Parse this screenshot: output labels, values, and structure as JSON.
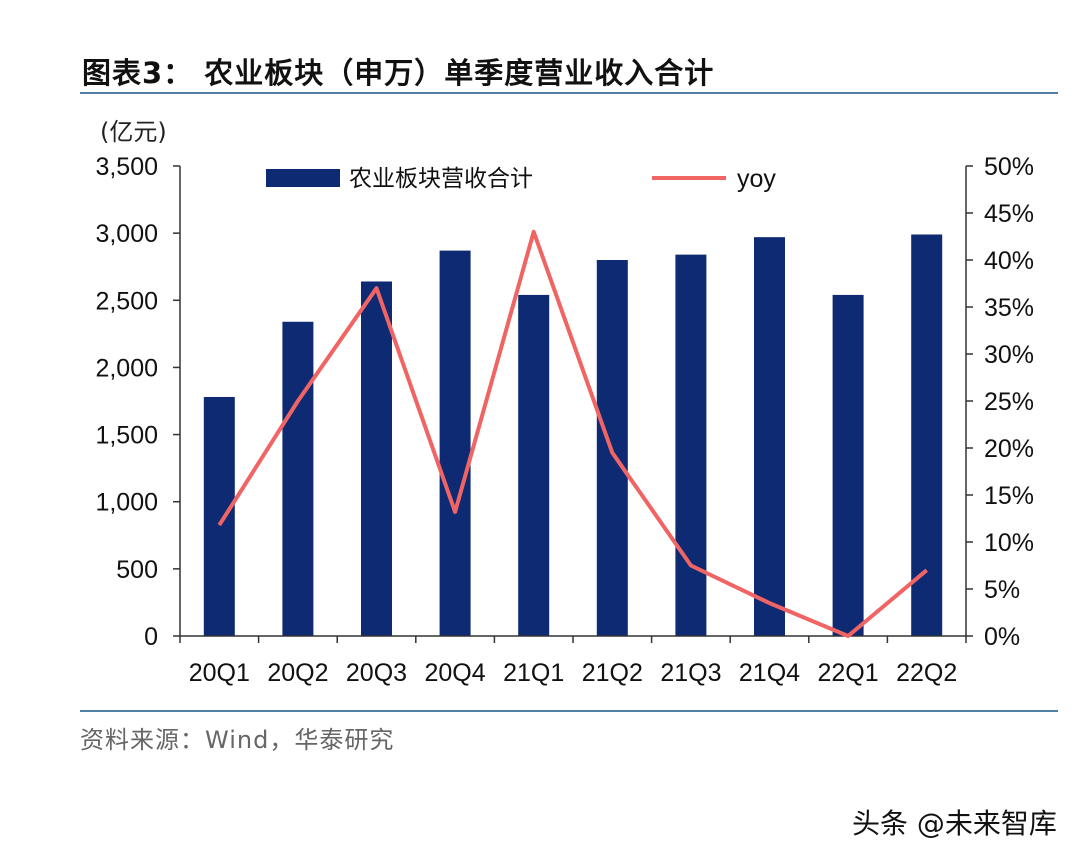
{
  "title": "图表3：  农业板块（申万）单季度营业收入合计",
  "source": "资料来源：Wind，华泰研究",
  "watermark": "头条 @未来智库",
  "chart_data": {
    "type": "bar",
    "categories": [
      "20Q1",
      "20Q2",
      "20Q3",
      "20Q4",
      "21Q1",
      "21Q2",
      "21Q3",
      "21Q4",
      "22Q1",
      "22Q2"
    ],
    "series": [
      {
        "name": "农业板块营收合计",
        "type": "bar",
        "axis": "left",
        "color": "#0d2a73",
        "values": [
          1780,
          2340,
          2640,
          2870,
          2540,
          2800,
          2840,
          2970,
          2540,
          2990
        ]
      },
      {
        "name": "yoy",
        "type": "line",
        "axis": "right",
        "color": "#f06464",
        "values": [
          11.8,
          25.0,
          37.0,
          13.2,
          43.0,
          19.5,
          7.5,
          3.5,
          0.0,
          7.0
        ]
      }
    ],
    "ylabel": "(亿元)",
    "ylim": [
      0,
      3500
    ],
    "yticks": [
      "0",
      "500",
      "1,000",
      "1,500",
      "2,000",
      "2,500",
      "3,000",
      "3,500"
    ],
    "y2lim": [
      0,
      50
    ],
    "y2ticks": [
      "0%",
      "5%",
      "10%",
      "15%",
      "20%",
      "25%",
      "30%",
      "35%",
      "40%",
      "45%",
      "50%"
    ],
    "legend": "top"
  }
}
